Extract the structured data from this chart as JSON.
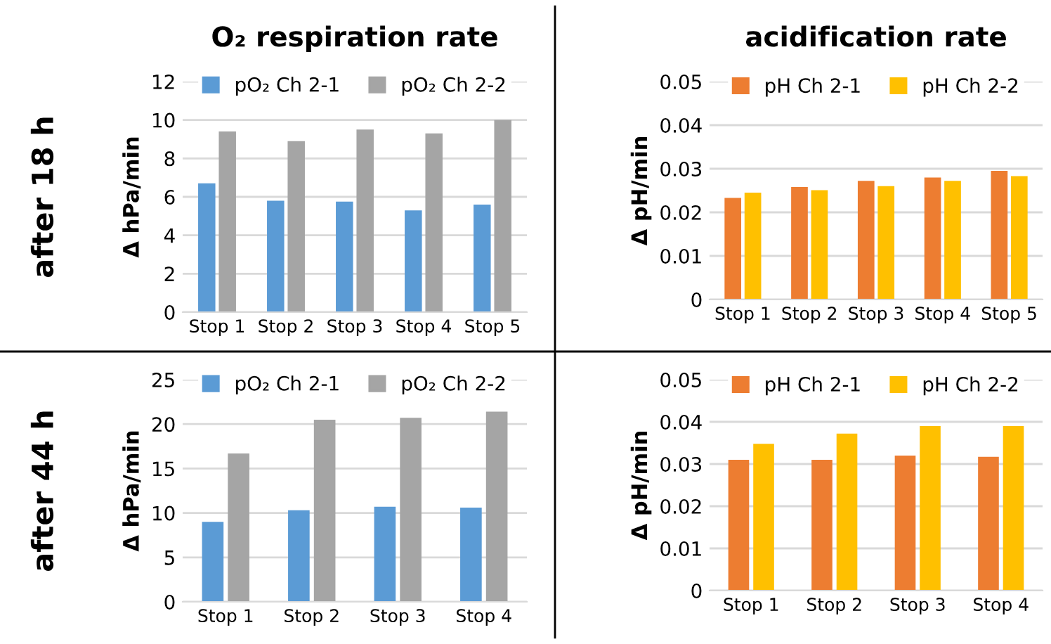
{
  "chart_data": [
    {
      "type": "bar",
      "title": "O₂ respiration rate",
      "ylabel": "Δ hPa/min",
      "annotations": [
        "after 18 h"
      ],
      "categories": [
        "Stop 1",
        "Stop 2",
        "Stop 3",
        "Stop 4",
        "Stop 5"
      ],
      "series": [
        {
          "name": "pO₂ Ch 2-1",
          "color": "#5b9bd5",
          "values": [
            6.7,
            5.8,
            5.75,
            5.3,
            5.6
          ]
        },
        {
          "name": "pO₂ Ch 2-2",
          "color": "#a5a5a5",
          "values": [
            9.4,
            8.9,
            9.5,
            9.3,
            10.0
          ]
        }
      ],
      "ylim": [
        0,
        12
      ],
      "yticks": [
        0,
        2,
        4,
        6,
        8,
        10,
        12
      ],
      "grid": "y",
      "legend": "top"
    },
    {
      "type": "bar",
      "title": "acidification rate",
      "ylabel": "Δ pH/min",
      "categories": [
        "Stop 1",
        "Stop 2",
        "Stop 3",
        "Stop 4",
        "Stop 5"
      ],
      "series": [
        {
          "name": "pH Ch 2-1",
          "color": "#ed7d31",
          "values": [
            0.0233,
            0.0258,
            0.0272,
            0.028,
            0.0295
          ]
        },
        {
          "name": "pH Ch 2-2",
          "color": "#ffc000",
          "values": [
            0.0245,
            0.0251,
            0.026,
            0.0272,
            0.0283
          ]
        }
      ],
      "ylim": [
        0,
        0.05
      ],
      "yticks": [
        0,
        0.01,
        0.02,
        0.03,
        0.04,
        0.05
      ],
      "grid": "y",
      "legend": "top"
    },
    {
      "type": "bar",
      "ylabel": "Δ hPa/min",
      "annotations": [
        "after 44 h"
      ],
      "categories": [
        "Stop 1",
        "Stop 2",
        "Stop 3",
        "Stop 4"
      ],
      "series": [
        {
          "name": "pO₂ Ch 2-1",
          "color": "#5b9bd5",
          "values": [
            9.0,
            10.3,
            10.7,
            10.6
          ]
        },
        {
          "name": "pO₂ Ch 2-2",
          "color": "#a5a5a5",
          "values": [
            16.7,
            20.5,
            20.7,
            21.4
          ]
        }
      ],
      "ylim": [
        0,
        25
      ],
      "yticks": [
        0,
        5,
        10,
        15,
        20,
        25
      ],
      "grid": "y",
      "legend": "top"
    },
    {
      "type": "bar",
      "ylabel": "Δ pH/min",
      "categories": [
        "Stop 1",
        "Stop 2",
        "Stop 3",
        "Stop 4"
      ],
      "series": [
        {
          "name": "pH Ch 2-1",
          "color": "#ed7d31",
          "values": [
            0.031,
            0.031,
            0.032,
            0.0317
          ]
        },
        {
          "name": "pH Ch 2-2",
          "color": "#ffc000",
          "values": [
            0.0348,
            0.0372,
            0.039,
            0.039
          ]
        }
      ],
      "ylim": [
        0,
        0.05
      ],
      "yticks": [
        0,
        0.01,
        0.02,
        0.03,
        0.04,
        0.05
      ],
      "grid": "y",
      "legend": "top"
    }
  ]
}
